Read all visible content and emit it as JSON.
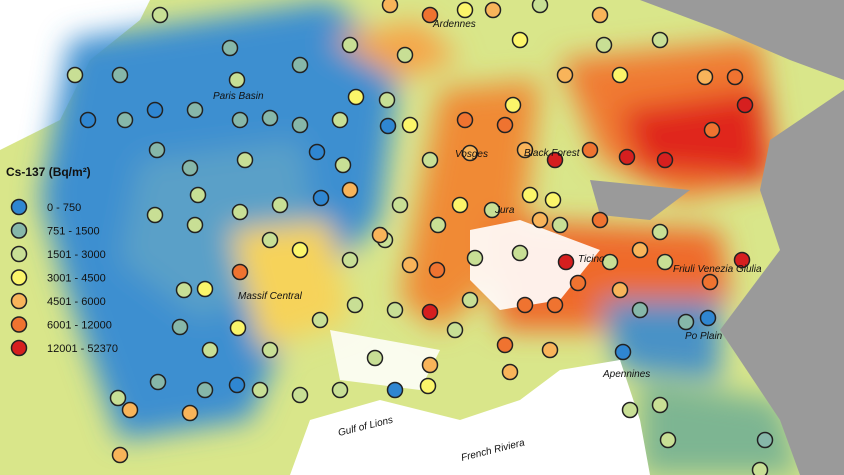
{
  "legend": {
    "title": "Cs-137 (Bq/m²)",
    "items": [
      {
        "label": "0 - 750",
        "color": "#2f86d1"
      },
      {
        "label": "751 - 1500",
        "color": "#86b7a9"
      },
      {
        "label": "1501 - 3000",
        "color": "#c8df95"
      },
      {
        "label": "3001 - 4500",
        "color": "#fbf56a"
      },
      {
        "label": "4501 - 6000",
        "color": "#f8b45a"
      },
      {
        "label": "6001 - 12000",
        "color": "#ef7330"
      },
      {
        "label": "12001 - 52370",
        "color": "#d61f1f"
      }
    ]
  },
  "labels": [
    "Ardennes",
    "Paris Basin",
    "Vosges",
    "Black Forest",
    "Jura",
    "Ticino",
    "Friuli Venezia Giulia",
    "Massif Central",
    "Po Plain",
    "Apennines",
    "Gulf of Lions",
    "French Riviera"
  ]
}
